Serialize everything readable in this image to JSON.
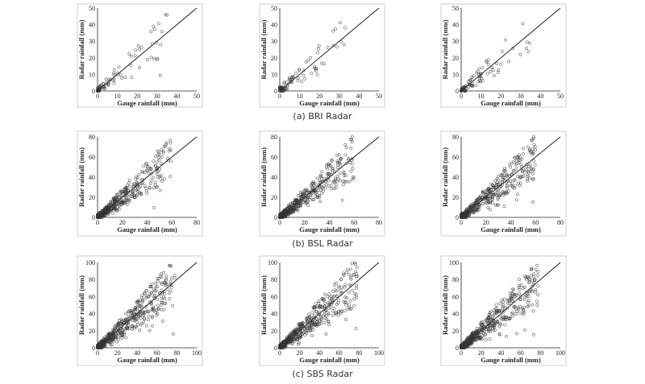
{
  "figure": {
    "rows": [
      {
        "caption": "(a) BRI Radar",
        "max": 50,
        "ticks": [
          0,
          10,
          20,
          30,
          40,
          50
        ],
        "seeds": [
          11,
          12,
          13
        ],
        "n_points": 90,
        "spread": 10,
        "tail": 35
      },
      {
        "caption": "(b) BSL Radar",
        "max": 80,
        "ticks": [
          0,
          20,
          40,
          60,
          80
        ],
        "seeds": [
          21,
          22,
          23
        ],
        "n_points": 520,
        "spread": 14,
        "tail": 60
      },
      {
        "caption": "(c) SBS Radar",
        "max": 100,
        "ticks": [
          0,
          20,
          40,
          60,
          80,
          100
        ],
        "seeds": [
          31,
          32,
          33
        ],
        "n_points": 620,
        "spread": 16,
        "tail": 78
      }
    ]
  },
  "chart_data": [
    {
      "type": "scatter",
      "title": "",
      "xlabel": "Gauge rainfall (mm)",
      "ylabel": "Radar rainfall (mm)",
      "xlim": [
        0,
        50
      ],
      "ylim": [
        0,
        50
      ],
      "reference_line": "1:1",
      "grid": false
    },
    {
      "type": "scatter",
      "title": "",
      "xlabel": "Gauge rainfall (mm)",
      "ylabel": "Radar rainfall (mm)",
      "xlim": [
        0,
        50
      ],
      "ylim": [
        0,
        50
      ],
      "reference_line": "1:1",
      "grid": false
    },
    {
      "type": "scatter",
      "title": "",
      "xlabel": "Gauge rainfall (mm)",
      "ylabel": "Radar rainfall (mm)",
      "xlim": [
        0,
        50
      ],
      "ylim": [
        0,
        50
      ],
      "reference_line": "1:1",
      "grid": false
    },
    {
      "type": "scatter",
      "title": "",
      "xlabel": "Gauge rainfall (mm)",
      "ylabel": "Radar rainfall (mm)",
      "xlim": [
        0,
        80
      ],
      "ylim": [
        0,
        80
      ],
      "reference_line": "1:1",
      "grid": false
    },
    {
      "type": "scatter",
      "title": "",
      "xlabel": "Gauge rainfall (mm)",
      "ylabel": "Radar rainfall (mm)",
      "xlim": [
        0,
        80
      ],
      "ylim": [
        0,
        80
      ],
      "reference_line": "1:1",
      "grid": false
    },
    {
      "type": "scatter",
      "title": "",
      "xlabel": "Gauge rainfall (mm)",
      "ylabel": "Radar rainfall (mm)",
      "xlim": [
        0,
        80
      ],
      "ylim": [
        0,
        80
      ],
      "reference_line": "1:1",
      "grid": false
    },
    {
      "type": "scatter",
      "title": "",
      "xlabel": "Gauge rainfall (mm)",
      "ylabel": "Radar rainfall (mm)",
      "xlim": [
        0,
        100
      ],
      "ylim": [
        0,
        100
      ],
      "reference_line": "1:1",
      "grid": false
    },
    {
      "type": "scatter",
      "title": "",
      "xlabel": "Gauge rainfall (mm)",
      "ylabel": "Radar rainfall (mm)",
      "xlim": [
        0,
        100
      ],
      "ylim": [
        0,
        100
      ],
      "reference_line": "1:1",
      "grid": false
    },
    {
      "type": "scatter",
      "title": "",
      "xlabel": "Gauge rainfall (mm)",
      "ylabel": "Radar rainfall (mm)",
      "xlim": [
        0,
        100
      ],
      "ylim": [
        0,
        100
      ],
      "reference_line": "1:1",
      "grid": false
    }
  ]
}
